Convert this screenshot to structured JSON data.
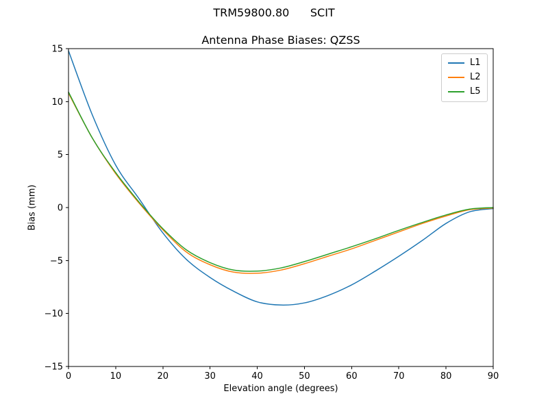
{
  "figure": {
    "background": "#ffffff"
  },
  "chart_data": {
    "type": "line",
    "suptitle": "TRM59800.80      SCIT",
    "title": "Antenna Phase Biases: QZSS",
    "xlabel": "Elevation angle (degrees)",
    "ylabel": "Bias (mm)",
    "xlim": [
      0,
      90
    ],
    "ylim": [
      -15,
      15
    ],
    "xticks": [
      0,
      10,
      20,
      30,
      40,
      50,
      60,
      70,
      80,
      90
    ],
    "yticks": [
      -15,
      -10,
      -5,
      0,
      5,
      10,
      15
    ],
    "grid": false,
    "legend_position": "upper right",
    "axis_color": "#000000",
    "x": [
      0,
      5,
      10,
      15,
      20,
      25,
      30,
      35,
      40,
      45,
      50,
      55,
      60,
      65,
      70,
      75,
      80,
      85,
      90
    ],
    "series": [
      {
        "name": "L1",
        "color": "#1f77b4",
        "values": [
          14.8,
          8.8,
          4.0,
          0.8,
          -2.4,
          -4.9,
          -6.6,
          -7.9,
          -8.9,
          -9.2,
          -9.0,
          -8.3,
          -7.3,
          -6.0,
          -4.6,
          -3.1,
          -1.5,
          -0.4,
          -0.1
        ]
      },
      {
        "name": "L2",
        "color": "#ff7f0e",
        "values": [
          10.8,
          6.6,
          3.2,
          0.4,
          -2.1,
          -4.2,
          -5.4,
          -6.1,
          -6.2,
          -5.9,
          -5.3,
          -4.6,
          -3.9,
          -3.1,
          -2.3,
          -1.5,
          -0.8,
          -0.2,
          -0.05
        ]
      },
      {
        "name": "L5",
        "color": "#2ca02c",
        "values": [
          10.9,
          6.6,
          3.3,
          0.5,
          -2.0,
          -4.0,
          -5.2,
          -5.9,
          -6.0,
          -5.7,
          -5.1,
          -4.4,
          -3.7,
          -2.95,
          -2.15,
          -1.4,
          -0.7,
          -0.15,
          0.0
        ]
      }
    ]
  }
}
